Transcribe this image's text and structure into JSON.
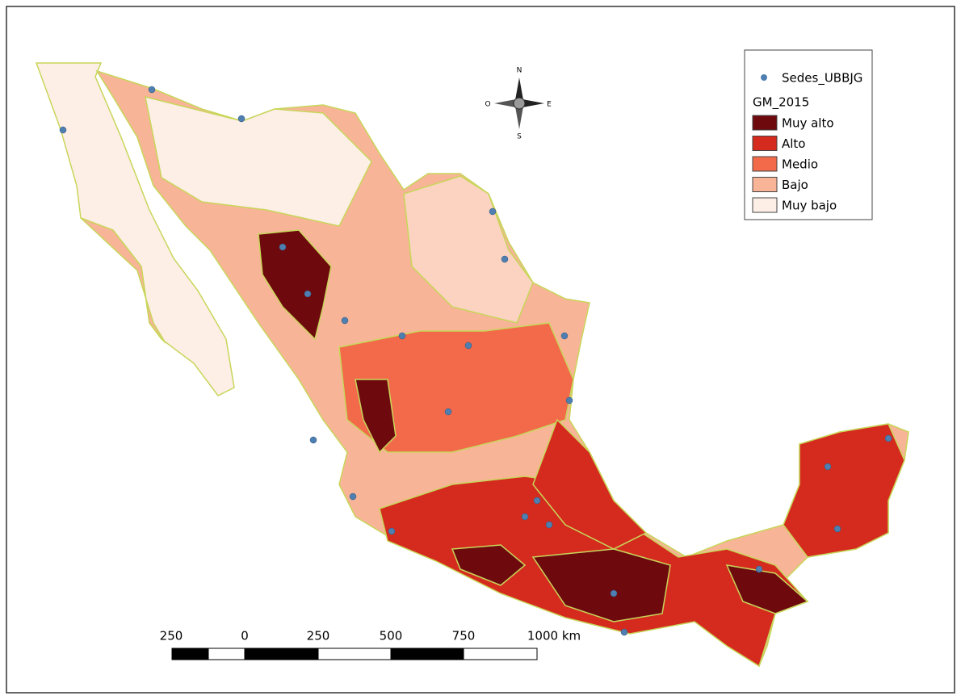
{
  "legend": {
    "points_layer": "Sedes_UBBJG",
    "title": "GM_2015",
    "items": [
      "Muy alto",
      "Alto",
      "Medio",
      "Bajo",
      "Muy bajo"
    ]
  },
  "compass": {
    "north": "N",
    "south": "S",
    "west": "O",
    "east": "E"
  },
  "scale_bar": {
    "labels": [
      "250",
      "0",
      "250",
      "500",
      "750",
      "1000 km"
    ]
  }
}
